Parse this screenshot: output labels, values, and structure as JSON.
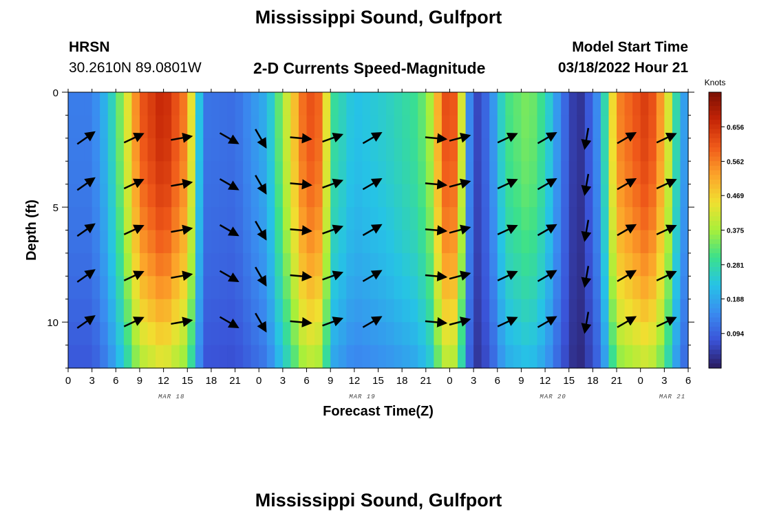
{
  "titles": {
    "main": "Mississippi Sound, Gulfport",
    "footer": "Mississippi Sound, Gulfport"
  },
  "header": {
    "station": "HRSN",
    "coords": "30.2610N  89.0801W",
    "subtitle": "2-D Currents Speed-Magnitude",
    "model_label": "Model Start Time",
    "model_time": "03/18/2022 Hour 21"
  },
  "chart_data": {
    "type": "heatmap",
    "title": "2-D Currents Speed-Magnitude",
    "xlabel": "Forecast Time(Z)",
    "ylabel": "Depth (ft)",
    "x_range_hours": [
      0,
      78
    ],
    "y_range_ft": [
      0,
      12
    ],
    "x_tick_labels": [
      "0",
      "3",
      "6",
      "9",
      "12",
      "15",
      "18",
      "21",
      "0",
      "3",
      "6",
      "9",
      "12",
      "15",
      "18",
      "21",
      "0",
      "3",
      "6",
      "9",
      "12",
      "15",
      "18",
      "21",
      "0",
      "3",
      "6"
    ],
    "y_tick_labels": [
      {
        "depth": 0,
        "label": "0"
      },
      {
        "depth": 5,
        "label": "5"
      },
      {
        "depth": 10,
        "label": "10"
      }
    ],
    "date_labels": [
      {
        "hour": 13,
        "label": "MAR 18"
      },
      {
        "hour": 37,
        "label": "MAR 19"
      },
      {
        "hour": 61,
        "label": "MAR 20"
      },
      {
        "hour": 76,
        "label": "MAR 21"
      }
    ],
    "colorbar": {
      "unit": "Knots",
      "ticks": [
        "0.094",
        "0.188",
        "0.281",
        "0.375",
        "0.469",
        "0.562",
        "0.656"
      ],
      "tick_values": [
        0.094,
        0.188,
        0.281,
        0.375,
        0.469,
        0.562,
        0.656
      ],
      "range": [
        0.0,
        0.75
      ],
      "stops": [
        "#2a1a5e",
        "#3a53d8",
        "#3a8cf0",
        "#26c3e6",
        "#3be08c",
        "#a8ef3a",
        "#f0e030",
        "#fca32a",
        "#f05a1a",
        "#c42406",
        "#7a1004"
      ]
    },
    "speed_profile": [
      [
        0,
        0.13
      ],
      [
        3,
        0.13
      ],
      [
        5,
        0.22
      ],
      [
        7,
        0.38
      ],
      [
        9,
        0.6
      ],
      [
        12,
        0.68
      ],
      [
        15,
        0.55
      ],
      [
        17,
        0.12
      ],
      [
        21,
        0.11
      ],
      [
        25,
        0.2
      ],
      [
        28,
        0.45
      ],
      [
        30,
        0.62
      ],
      [
        32,
        0.58
      ],
      [
        33,
        0.3
      ],
      [
        36,
        0.22
      ],
      [
        40,
        0.25
      ],
      [
        44,
        0.3
      ],
      [
        46,
        0.4
      ],
      [
        47,
        0.62
      ],
      [
        49,
        0.6
      ],
      [
        50,
        0.25
      ],
      [
        51,
        0.04
      ],
      [
        53,
        0.12
      ],
      [
        55,
        0.3
      ],
      [
        58,
        0.35
      ],
      [
        60,
        0.28
      ],
      [
        62,
        0.13
      ],
      [
        64,
        0.02
      ],
      [
        65,
        0.05
      ],
      [
        67,
        0.18
      ],
      [
        69,
        0.55
      ],
      [
        73,
        0.65
      ],
      [
        75,
        0.5
      ],
      [
        77,
        0.2
      ],
      [
        78,
        0.15
      ]
    ],
    "arrow_columns": [
      {
        "hour": 1,
        "angle": -35
      },
      {
        "hour": 7,
        "angle": -25
      },
      {
        "hour": 13,
        "angle": -10
      },
      {
        "hour": 19,
        "angle": 30
      },
      {
        "hour": 23,
        "angle": 60
      },
      {
        "hour": 28,
        "angle": 5
      },
      {
        "hour": 32,
        "angle": -20
      },
      {
        "hour": 37,
        "angle": -30
      },
      {
        "hour": 45,
        "angle": 5
      },
      {
        "hour": 48,
        "angle": -15
      },
      {
        "hour": 54,
        "angle": -25
      },
      {
        "hour": 59,
        "angle": -30
      },
      {
        "hour": 64,
        "angle": 100
      },
      {
        "hour": 69,
        "angle": -30
      },
      {
        "hour": 74,
        "angle": -25
      }
    ],
    "arrow_depths": [
      2,
      4,
      6,
      8,
      10
    ]
  }
}
